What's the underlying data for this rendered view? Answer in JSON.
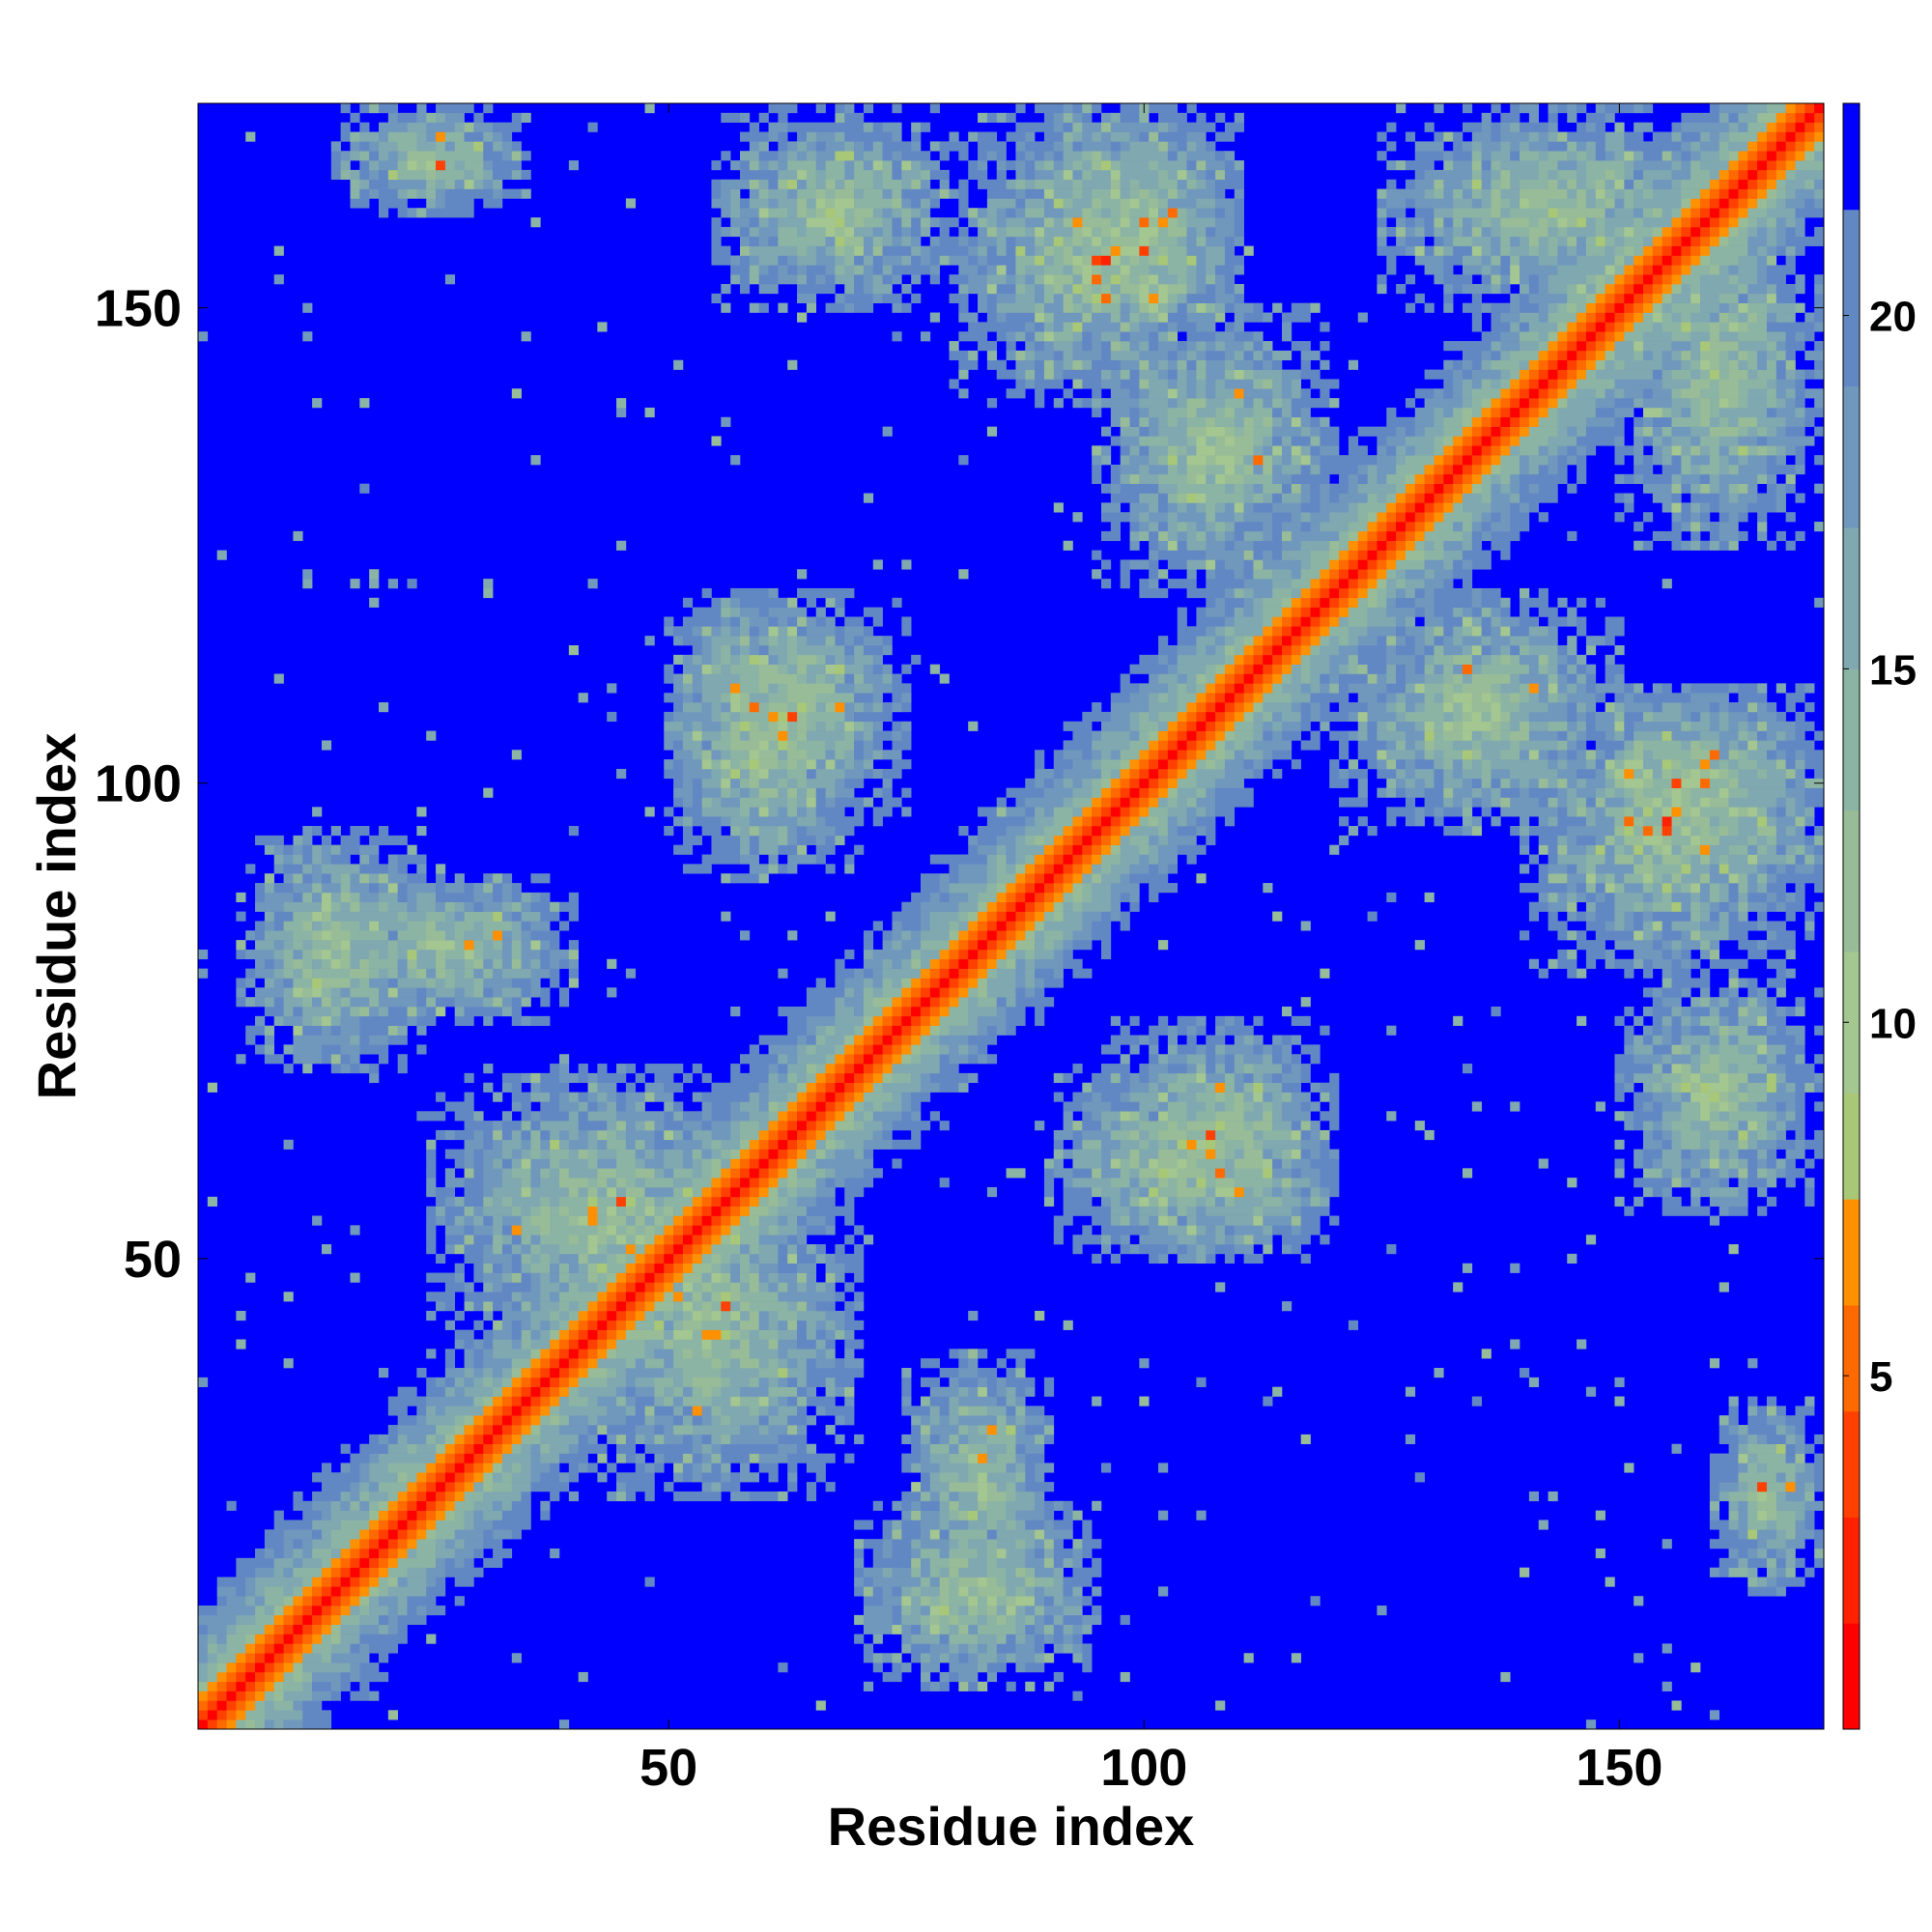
{
  "chart_data": {
    "type": "heatmap",
    "title": "",
    "xlabel": "Residue index",
    "ylabel": "Residue index",
    "n_residues": 171,
    "xlim": [
      1,
      171
    ],
    "ylim": [
      1,
      171
    ],
    "x_ticks": [
      50,
      100,
      150
    ],
    "y_ticks": [
      50,
      100,
      150
    ],
    "colorbar": {
      "ticks": [
        5,
        10,
        15,
        20
      ],
      "range": [
        0,
        23
      ],
      "levels": [
        {
          "from": 0,
          "to": 1.5,
          "color": "#ff0000"
        },
        {
          "from": 1.5,
          "to": 3,
          "color": "#ff2200"
        },
        {
          "from": 3,
          "to": 4.5,
          "color": "#ff4000"
        },
        {
          "from": 4.5,
          "to": 6,
          "color": "#ff6a00"
        },
        {
          "from": 6,
          "to": 7.5,
          "color": "#ff9000"
        },
        {
          "from": 7.5,
          "to": 9,
          "color": "#a8c878"
        },
        {
          "from": 9,
          "to": 11,
          "color": "#a4c690"
        },
        {
          "from": 11,
          "to": 13,
          "color": "#98bc98"
        },
        {
          "from": 13,
          "to": 15,
          "color": "#8cb4a4"
        },
        {
          "from": 15,
          "to": 17,
          "color": "#80a8b0"
        },
        {
          "from": 17,
          "to": 19,
          "color": "#7098bc"
        },
        {
          "from": 19,
          "to": 21.5,
          "color": "#6288c4"
        },
        {
          "from": 21.5,
          "to": 23,
          "color": "#0000ff"
        }
      ]
    },
    "background_color": "#0000ff",
    "contact_clusters": [
      {
        "i": [
          5,
          30
        ],
        "j": [
          5,
          30
        ],
        "strength": "diagonal"
      },
      {
        "i": [
          15,
          40
        ],
        "j": [
          75,
          90
        ]
      },
      {
        "i": [
          15,
          35
        ],
        "j": [
          160,
          171
        ]
      },
      {
        "i": [
          25,
          60
        ],
        "j": [
          40,
          70
        ]
      },
      {
        "i": [
          50,
          75
        ],
        "j": [
          95,
          120
        ]
      },
      {
        "i": [
          55,
          80
        ],
        "j": [
          150,
          171
        ]
      },
      {
        "i": [
          70,
          95
        ],
        "j": [
          5,
          25
        ]
      },
      {
        "i": [
          80,
          110
        ],
        "j": [
          140,
          171
        ]
      },
      {
        "i": [
          90,
          120
        ],
        "j": [
          50,
          70
        ]
      },
      {
        "i": [
          120,
          150
        ],
        "j": [
          95,
          120
        ]
      },
      {
        "i": [
          145,
          171
        ],
        "j": [
          90,
          110
        ]
      },
      {
        "i": [
          150,
          171
        ],
        "j": [
          125,
          160
        ]
      }
    ]
  }
}
